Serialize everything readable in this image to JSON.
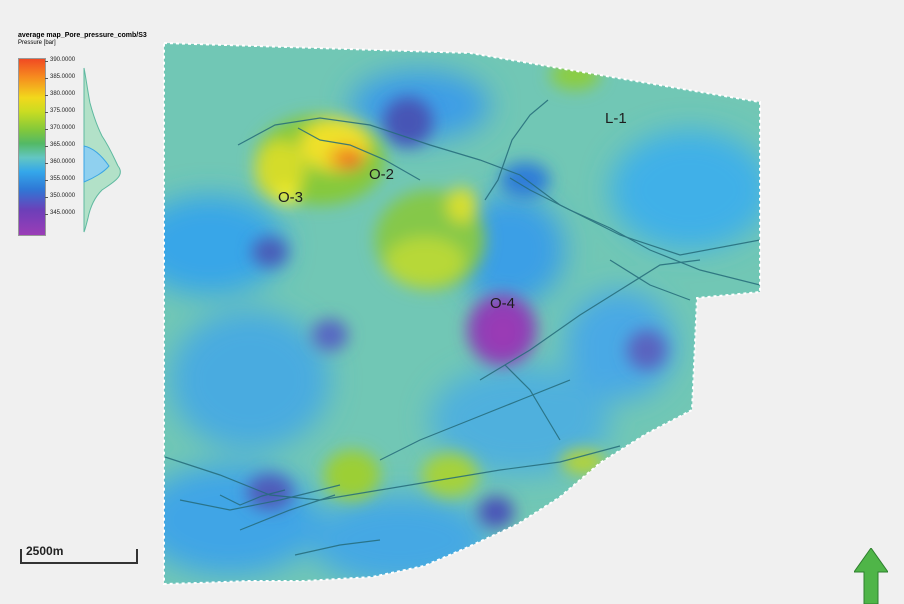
{
  "legend": {
    "title": "average map_Pore_pressure_comb/S3",
    "subtitle": "Pressure [bar]",
    "ticks": [
      "390.0000",
      "385.0000",
      "380.0000",
      "375.0000",
      "370.0000",
      "365.0000",
      "360.0000",
      "355.0000",
      "350.0000",
      "345.0000"
    ]
  },
  "labels": {
    "o2": "O-2",
    "o3": "O-3",
    "o4": "O-4",
    "l1": "L-1"
  },
  "scale_bar": {
    "text": "2500m"
  },
  "colors": {
    "high": "#f04a23",
    "mid_high": "#f2d81c",
    "mid": "#53b965",
    "low": "#34a7ea",
    "very_low": "#9b3db7",
    "fault": "#256b7a"
  }
}
